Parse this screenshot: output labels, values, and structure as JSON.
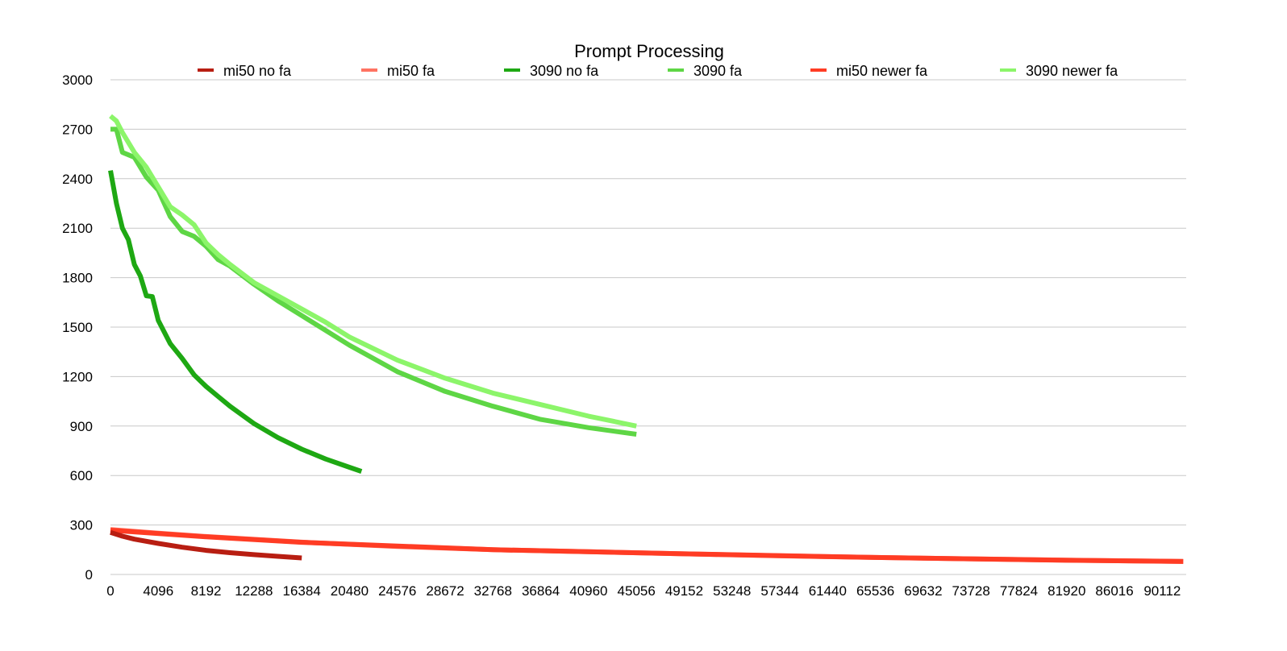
{
  "chart_data": {
    "type": "line",
    "title": "Prompt Processing",
    "xlabel": "",
    "ylabel": "",
    "xlim": [
      0,
      92160
    ],
    "ylim": [
      0,
      3000
    ],
    "grid": true,
    "legend_position": "top",
    "x_ticks": [
      "0",
      "4096",
      "8192",
      "12288",
      "16384",
      "20480",
      "24576",
      "28672",
      "32768",
      "36864",
      "40960",
      "45056",
      "49152",
      "53248",
      "57344",
      "61440",
      "65536",
      "69632",
      "73728",
      "77824",
      "81920",
      "86016",
      "90112"
    ],
    "y_ticks": [
      "0",
      "300",
      "600",
      "900",
      "1200",
      "1500",
      "1800",
      "2100",
      "2400",
      "2700",
      "3000"
    ],
    "series": [
      {
        "name": "mi50 no fa",
        "color": "#b81e12",
        "x": [
          0,
          1024,
          2048,
          4096,
          6144,
          8192,
          10240,
          12288,
          14336,
          16384
        ],
        "y": [
          255,
          232,
          214,
          188,
          165,
          146,
          132,
          120,
          110,
          100
        ]
      },
      {
        "name": "mi50 fa",
        "color": "#ff7362",
        "x": [
          0,
          4096,
          8192,
          16384,
          24576,
          32768,
          40960,
          49152,
          57344,
          65536,
          73728,
          81920,
          90112,
          91904
        ],
        "y": [
          272,
          250,
          230,
          196,
          170,
          150,
          138,
          125,
          113,
          103,
          95,
          87,
          80,
          78
        ]
      },
      {
        "name": "3090 no fa",
        "color": "#1ea813",
        "x": [
          0,
          512,
          1024,
          1536,
          2048,
          2560,
          3072,
          3584,
          4096,
          5120,
          6144,
          7168,
          8192,
          9216,
          10240,
          12288,
          14336,
          16384,
          18432,
          20480,
          21504
        ],
        "y": [
          2450,
          2250,
          2100,
          2030,
          1880,
          1810,
          1690,
          1685,
          1540,
          1400,
          1310,
          1210,
          1140,
          1080,
          1020,
          915,
          830,
          760,
          700,
          650,
          625
        ]
      },
      {
        "name": "3090 fa",
        "color": "#5ed645",
        "x": [
          0,
          512,
          1024,
          2048,
          3072,
          4096,
          5120,
          6144,
          7168,
          8192,
          9216,
          10240,
          12288,
          14336,
          16384,
          18432,
          20480,
          24576,
          28672,
          32768,
          36864,
          40960,
          45056
        ],
        "y": [
          2700,
          2700,
          2560,
          2530,
          2410,
          2330,
          2170,
          2080,
          2050,
          1990,
          1910,
          1870,
          1760,
          1660,
          1570,
          1480,
          1390,
          1230,
          1110,
          1020,
          940,
          890,
          850
        ]
      },
      {
        "name": "mi50 newer fa",
        "color": "#ff3c24",
        "x": [
          0,
          8192,
          16384,
          32768,
          49152,
          65536,
          81920,
          91904
        ],
        "y": [
          268,
          228,
          195,
          150,
          125,
          103,
          86,
          79
        ]
      },
      {
        "name": "3090 newer fa",
        "color": "#8cf56a",
        "x": [
          0,
          512,
          1024,
          2048,
          3072,
          4096,
          5120,
          6144,
          7168,
          8192,
          9216,
          10240,
          12288,
          14336,
          16384,
          18432,
          20480,
          24576,
          28672,
          32768,
          36864,
          40960,
          45056
        ],
        "y": [
          2780,
          2750,
          2680,
          2560,
          2470,
          2350,
          2230,
          2180,
          2120,
          2010,
          1940,
          1880,
          1770,
          1690,
          1610,
          1530,
          1440,
          1300,
          1190,
          1100,
          1030,
          960,
          900
        ]
      }
    ]
  }
}
